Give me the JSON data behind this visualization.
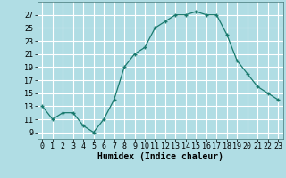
{
  "x": [
    0,
    1,
    2,
    3,
    4,
    5,
    6,
    7,
    8,
    9,
    10,
    11,
    12,
    13,
    14,
    15,
    16,
    17,
    18,
    19,
    20,
    21,
    22,
    23
  ],
  "y": [
    13,
    11,
    12,
    12,
    10,
    9,
    11,
    14,
    19,
    21,
    22,
    25,
    26,
    27,
    27,
    27.5,
    27,
    27,
    24,
    20,
    18,
    16,
    15,
    14
  ],
  "xlabel": "Humidex (Indice chaleur)",
  "xlim": [
    -0.5,
    23.5
  ],
  "ylim": [
    8,
    29
  ],
  "yticks": [
    9,
    11,
    13,
    15,
    17,
    19,
    21,
    23,
    25,
    27
  ],
  "xtick_labels": [
    "0",
    "1",
    "2",
    "3",
    "4",
    "5",
    "6",
    "7",
    "8",
    "9",
    "10",
    "11",
    "12",
    "13",
    "14",
    "15",
    "16",
    "17",
    "18",
    "19",
    "20",
    "21",
    "22",
    "23"
  ],
  "line_color": "#1a7a6e",
  "marker": "+",
  "bg_color": "#b0dde4",
  "grid_color": "#ffffff",
  "axis_fontsize": 7,
  "tick_fontsize": 6
}
